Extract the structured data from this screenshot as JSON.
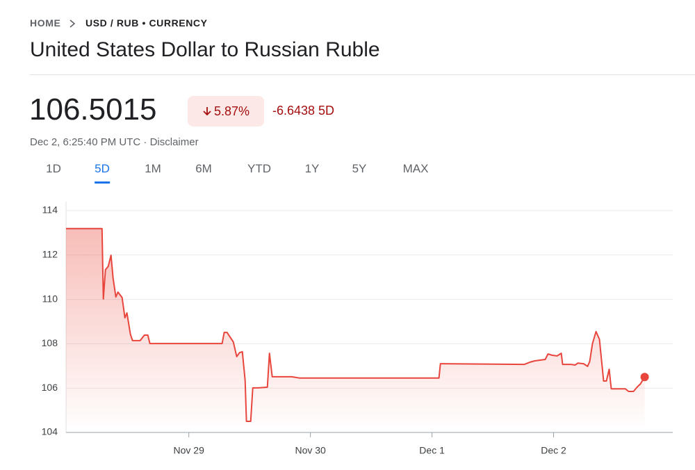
{
  "breadcrumb": {
    "home": "HOME",
    "pair": "USD / RUB • CURRENCY"
  },
  "title": "United States Dollar to Russian Ruble",
  "quote": {
    "price": "106.5015",
    "change_percent": "5.87%",
    "change": "-6.6438 5D",
    "timestamp": "Dec 2, 6:25:40 PM UTC",
    "separator": "·",
    "disclaimer": "Disclaimer"
  },
  "tabs": [
    "1D",
    "5D",
    "1M",
    "6M",
    "YTD",
    "1Y",
    "5Y",
    "MAX"
  ],
  "selected_tab": 1,
  "chart_data": {
    "type": "line",
    "color": "#e8453c",
    "grid": true,
    "x": [
      27.99,
      28.286,
      28.297,
      28.314,
      28.337,
      28.36,
      28.377,
      28.4,
      28.417,
      28.451,
      28.474,
      28.491,
      28.52,
      28.537,
      28.6,
      28.634,
      28.663,
      28.68,
      29.274,
      29.291,
      29.314,
      29.366,
      29.394,
      29.417,
      29.44,
      29.463,
      29.474,
      29.509,
      29.526,
      29.571,
      29.646,
      29.663,
      29.686,
      29.846,
      29.914,
      31.057,
      31.069,
      31.76,
      31.806,
      31.846,
      31.931,
      31.954,
      31.989,
      32.029,
      32.063,
      32.074,
      32.143,
      32.177,
      32.2,
      32.246,
      32.28,
      32.297,
      32.32,
      32.349,
      32.377,
      32.411,
      32.434,
      32.457,
      32.474,
      32.589,
      32.617,
      32.657,
      32.686,
      32.714,
      32.749
    ],
    "values": [
      113.19,
      113.19,
      110.02,
      111.34,
      111.49,
      111.99,
      110.96,
      110.11,
      110.33,
      110.08,
      109.17,
      109.39,
      108.42,
      108.14,
      108.14,
      108.39,
      108.39,
      108.01,
      108.01,
      108.51,
      108.51,
      108.08,
      107.42,
      107.6,
      107.64,
      106.35,
      104.5,
      104.5,
      106.01,
      106.01,
      106.04,
      107.57,
      106.51,
      106.51,
      106.45,
      106.45,
      107.1,
      107.07,
      107.17,
      107.23,
      107.29,
      107.54,
      107.48,
      107.45,
      107.57,
      107.07,
      107.07,
      107.04,
      107.13,
      107.1,
      106.98,
      107.2,
      108.01,
      108.55,
      108.2,
      106.32,
      106.32,
      106.85,
      105.97,
      105.97,
      105.85,
      105.85,
      106.04,
      106.19,
      106.5015
    ],
    "xlim": [
      27.99,
      32.98
    ],
    "xticks": [
      {
        "value": 29,
        "label": "Nov 29"
      },
      {
        "value": 30,
        "label": "Nov 30"
      },
      {
        "value": 31,
        "label": "Dec 1"
      },
      {
        "value": 32,
        "label": "Dec 2"
      }
    ],
    "ylim": [
      104,
      114
    ],
    "yticks": [
      104,
      106,
      108,
      110,
      112,
      114
    ]
  }
}
